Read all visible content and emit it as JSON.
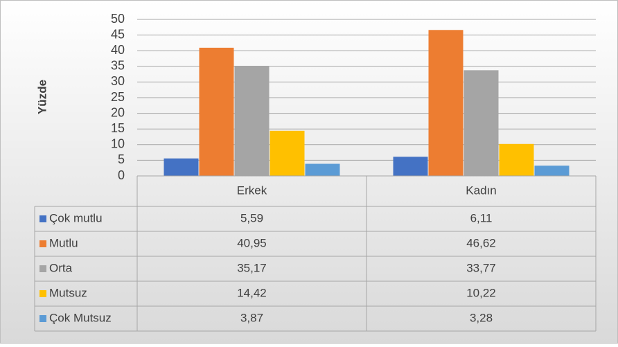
{
  "chart_data": {
    "type": "bar",
    "y_label": "Yüzde",
    "categories": [
      "Erkek",
      "Kadın"
    ],
    "series": [
      {
        "name": "Çok mutlu",
        "color": "#4472c4",
        "values": [
          5.59,
          6.11
        ],
        "value_labels": [
          "5,59",
          "6,11"
        ]
      },
      {
        "name": "Mutlu",
        "color": "#ed7d31",
        "values": [
          40.95,
          46.62
        ],
        "value_labels": [
          "40,95",
          "46,62"
        ]
      },
      {
        "name": "Orta",
        "color": "#a5a5a5",
        "values": [
          35.17,
          33.77
        ],
        "value_labels": [
          "35,17",
          "33,77"
        ]
      },
      {
        "name": "Mutsuz",
        "color": "#ffc000",
        "values": [
          14.42,
          10.22
        ],
        "value_labels": [
          "14,42",
          "10,22"
        ]
      },
      {
        "name": "Çok Mutsuz",
        "color": "#5b9bd5",
        "values": [
          3.87,
          3.28
        ],
        "value_labels": [
          "3,87",
          "3,28"
        ]
      }
    ],
    "ylim": [
      0,
      50
    ],
    "yticks": [
      0,
      5,
      10,
      15,
      20,
      25,
      30,
      35,
      40,
      45,
      50
    ],
    "grid": true
  }
}
